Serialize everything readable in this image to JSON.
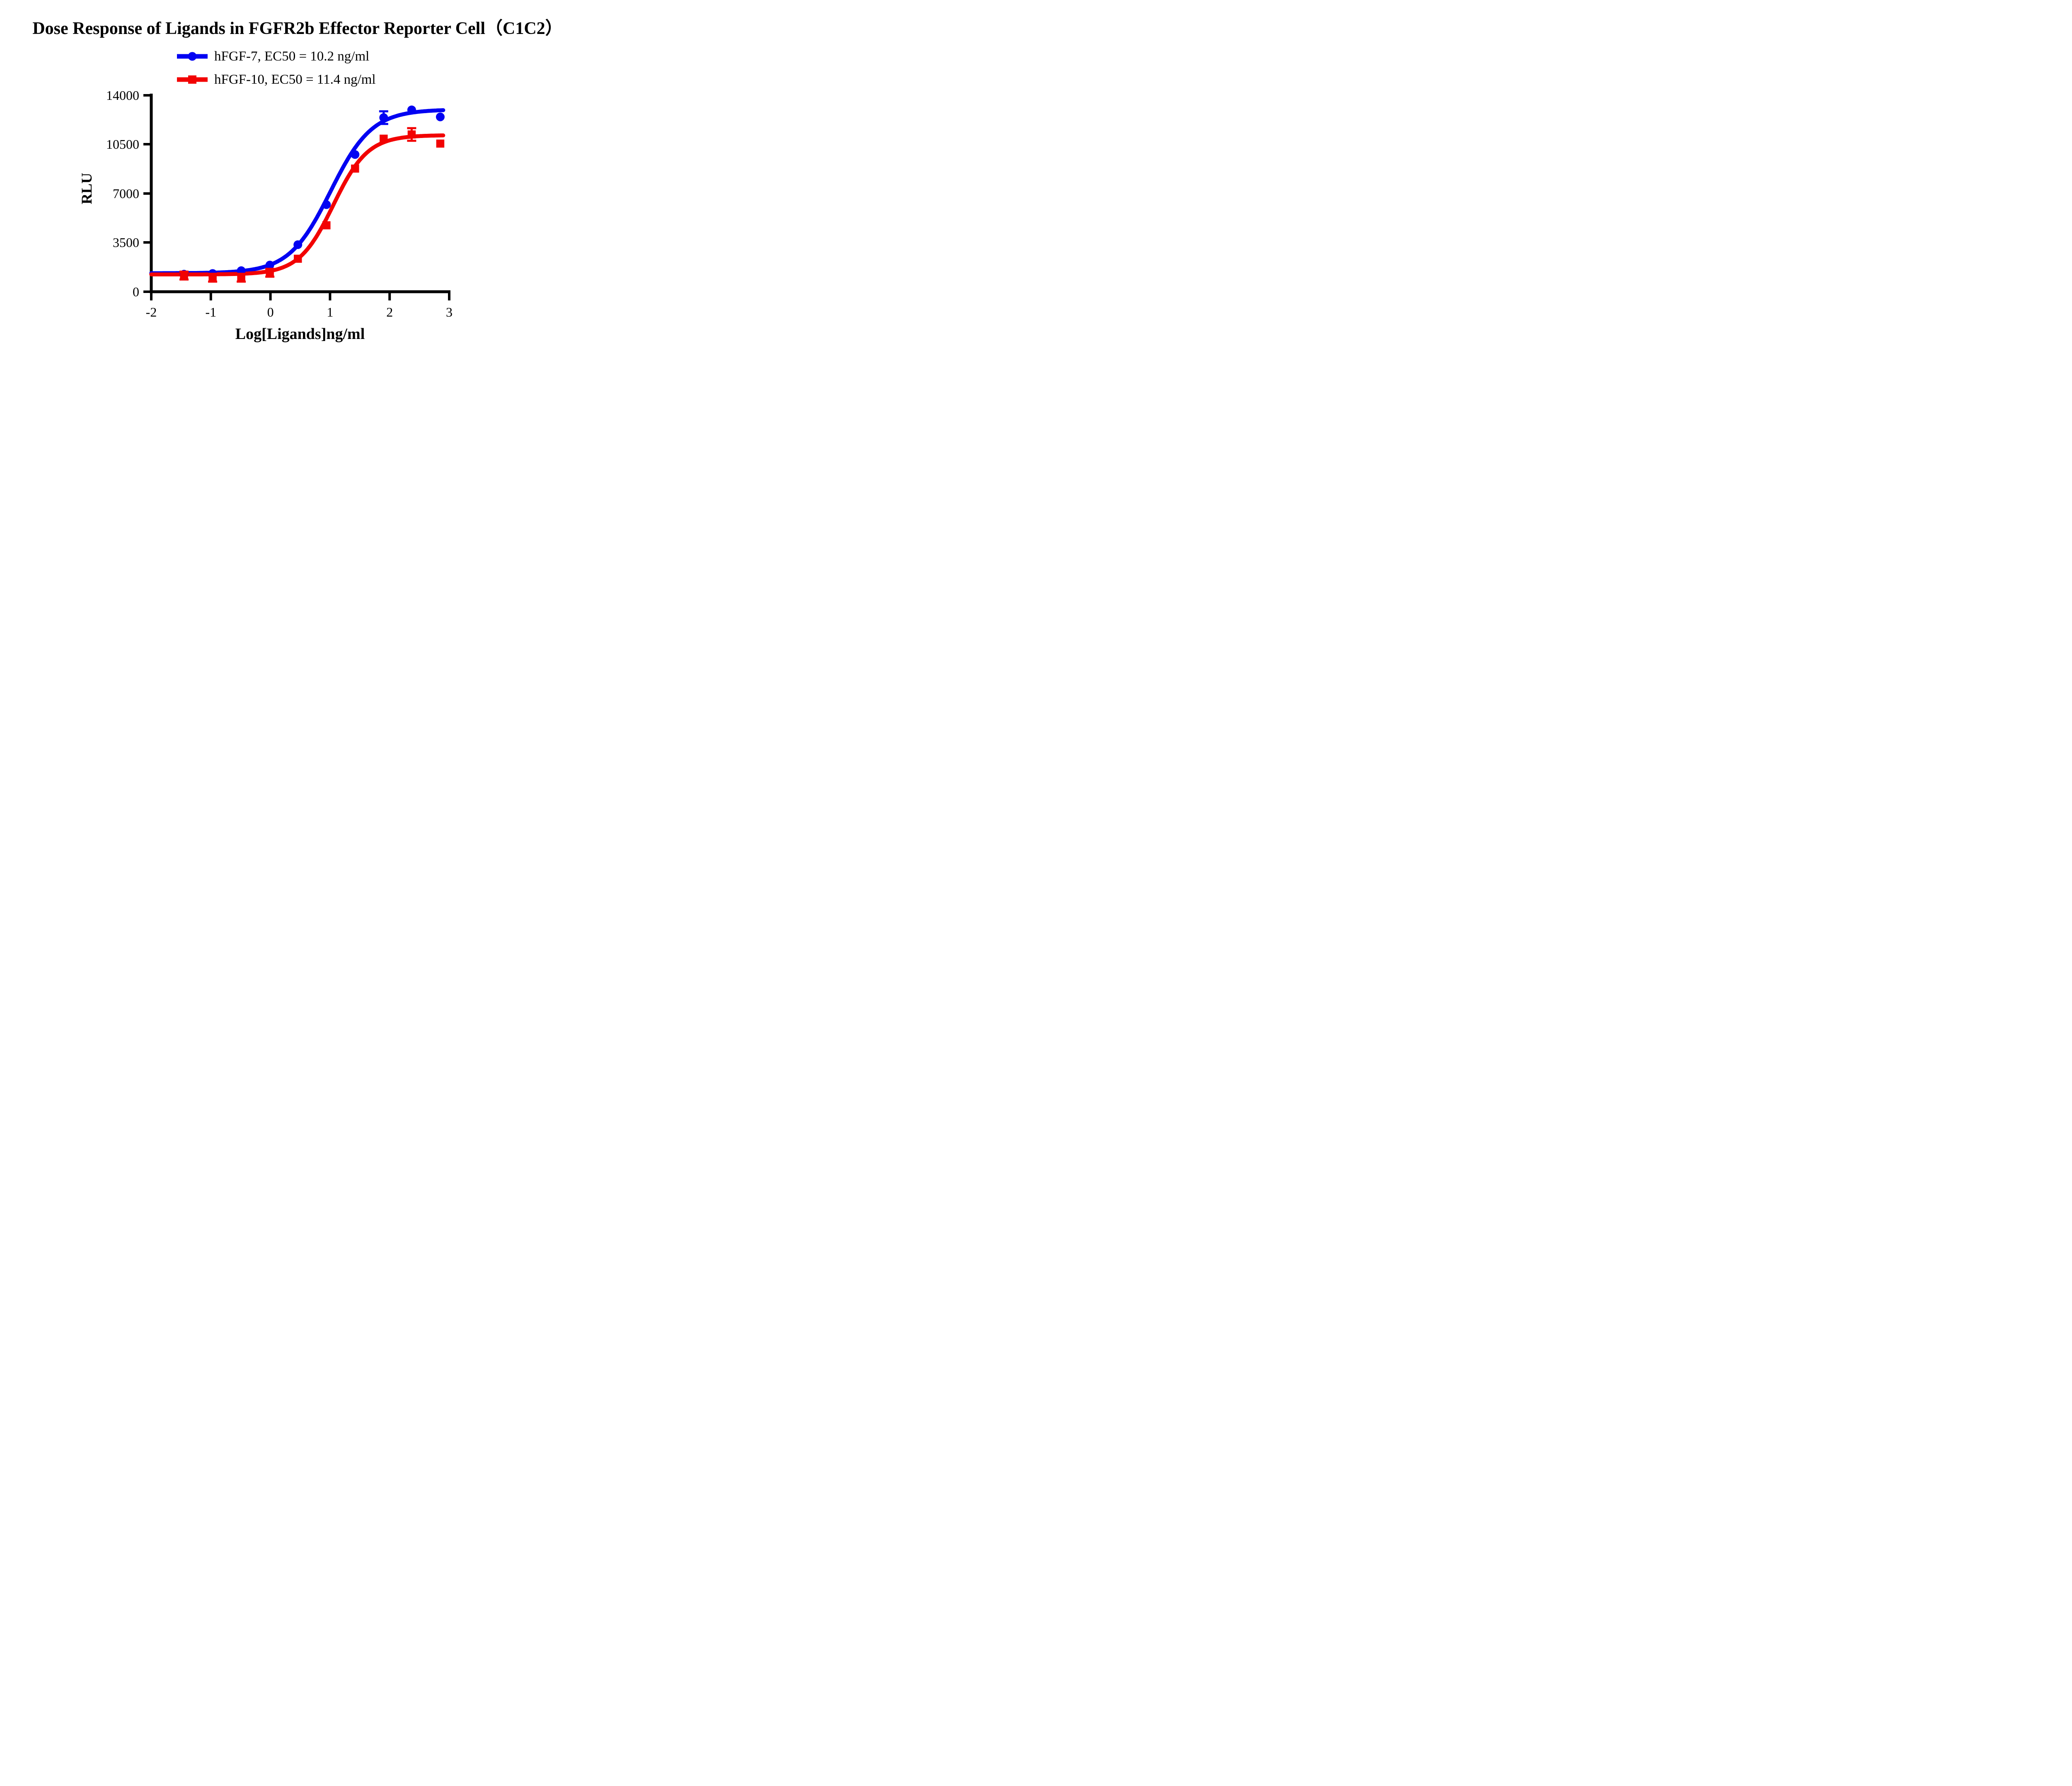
{
  "title": "Dose Response of Ligands in FGFR2b Effector Reporter Cell（C1C2）",
  "legend": {
    "items": [
      {
        "label": "hFGF-7, EC50 = 10.2 ng/ml",
        "marker": "circle",
        "color": "#0202f2"
      },
      {
        "label": "hFGF-10, EC50 = 11.4 ng/ml",
        "marker": "square",
        "color": "#f20202"
      }
    ]
  },
  "axes": {
    "x_title": "Log[Ligands]ng/ml",
    "y_title": "RLU",
    "x_tick_labels": [
      "-2",
      "-1",
      "0",
      "1",
      "2",
      "3"
    ],
    "y_tick_labels": [
      "0",
      "3500",
      "7000",
      "10500",
      "14000"
    ]
  },
  "chart_data": {
    "type": "scatter",
    "title": "Dose Response of Ligands in FGFR2b Effector Reporter Cell（C1C2）",
    "xlabel": "Log[Ligands]ng/ml",
    "ylabel": "RLU",
    "xlim": [
      -2,
      3
    ],
    "ylim": [
      0,
      14000
    ],
    "x_ticks": [
      -2,
      -1,
      0,
      1,
      2,
      3
    ],
    "y_ticks": [
      0,
      3500,
      7000,
      10500,
      14000
    ],
    "grid": false,
    "legend_position": "top-center",
    "curve_x_end": 2.9,
    "series": [
      {
        "name": "hFGF-7",
        "ec50_label": "EC50 = 10.2 ng/ml",
        "ec50_ng_ml": 10.2,
        "color": "#0202f2",
        "marker": "circle",
        "x": [
          -1.45,
          -0.97,
          -0.49,
          -0.01,
          0.46,
          0.94,
          1.42,
          1.9,
          2.37,
          2.85
        ],
        "y": [
          1250,
          1300,
          1500,
          1900,
          3350,
          6200,
          9770,
          12400,
          12950,
          12450
        ],
        "y_err": [
          0,
          0,
          0,
          0,
          0,
          0,
          0,
          450,
          0,
          0
        ],
        "fit_4pl": {
          "bottom": 1320,
          "top": 12980,
          "logEC50": 1.009,
          "hill": 1.25
        }
      },
      {
        "name": "hFGF-10",
        "ec50_label": "EC50 = 11.4 ng/ml",
        "ec50_ng_ml": 11.4,
        "color": "#f20202",
        "marker": "square",
        "x": [
          -1.45,
          -0.97,
          -0.49,
          -0.01,
          0.46,
          0.94,
          1.42,
          1.9,
          2.37,
          2.85
        ],
        "y": [
          1150,
          1000,
          1000,
          1350,
          2350,
          4730,
          8770,
          10900,
          11200,
          10550
        ],
        "y_err": [
          280,
          280,
          280,
          280,
          0,
          0,
          0,
          0,
          450,
          0
        ],
        "fit_4pl": {
          "bottom": 1230,
          "top": 11150,
          "logEC50": 1.057,
          "hill": 1.5
        }
      }
    ]
  }
}
